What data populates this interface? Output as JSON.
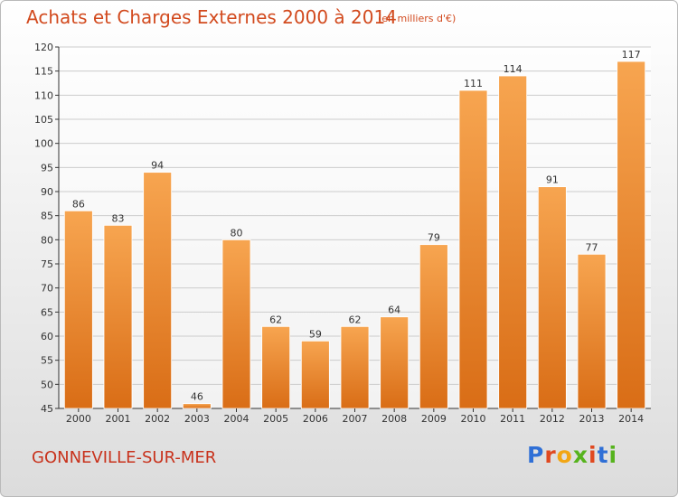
{
  "header": {
    "title": "Achats et Charges Externes 2000 à 2014",
    "subtitle": "(en milliers d'€)"
  },
  "footer": {
    "commune": "GONNEVILLE-SUR-MER",
    "logo_text": "Proxiti"
  },
  "colors": {
    "bar_top": "#f7a550",
    "bar_bottom": "#d96d16",
    "title": "#d24a1e",
    "grid": "#cccccc",
    "axis": "#333333"
  },
  "chart_data": {
    "type": "bar",
    "categories": [
      "2000",
      "2001",
      "2002",
      "2003",
      "2004",
      "2005",
      "2006",
      "2007",
      "2008",
      "2009",
      "2010",
      "2011",
      "2012",
      "2013",
      "2014"
    ],
    "values": [
      86,
      83,
      94,
      46,
      80,
      62,
      59,
      62,
      64,
      79,
      111,
      114,
      91,
      77,
      117
    ],
    "ylim": [
      45,
      120
    ],
    "yticks": [
      45,
      50,
      55,
      60,
      65,
      70,
      75,
      80,
      85,
      90,
      95,
      100,
      105,
      110,
      115,
      120
    ],
    "grid": true,
    "title": "Achats et Charges Externes 2000 à 2014",
    "xlabel": "",
    "ylabel": ""
  }
}
